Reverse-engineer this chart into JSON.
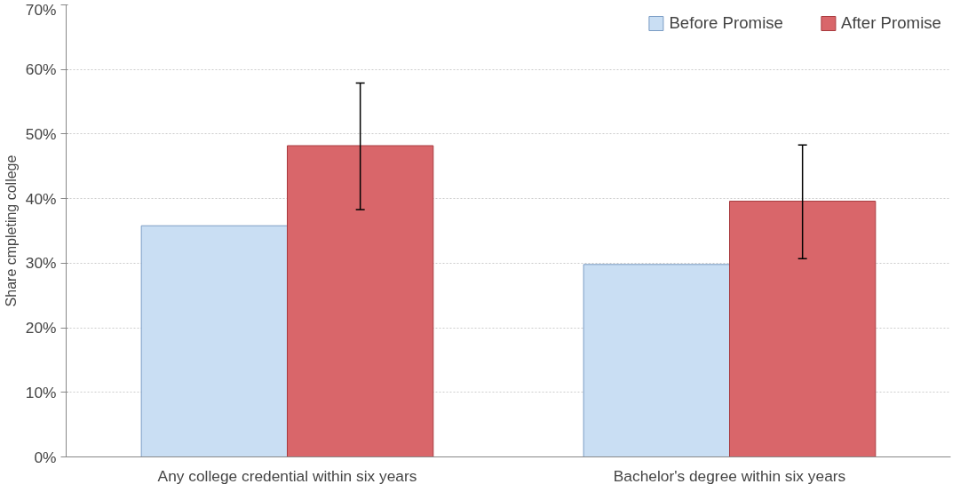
{
  "chart_data": {
    "type": "bar",
    "ylabel": "Share cmpleting college",
    "categories": [
      "Any college credential within six years",
      "Bachelor's degree within six years"
    ],
    "series": [
      {
        "name": "Before Promise",
        "color": "#c9def3",
        "values": [
          35.8,
          29.8
        ]
      },
      {
        "name": "After Promise",
        "color": "#d9666a",
        "values": [
          48.2,
          39.6
        ],
        "errors": [
          [
            38.3,
            57.9
          ],
          [
            30.7,
            48.3
          ]
        ]
      }
    ],
    "ylim": [
      0,
      70
    ],
    "yticks": [
      {
        "value": 0,
        "label": "0%"
      },
      {
        "value": 10,
        "label": "10%"
      },
      {
        "value": 20,
        "label": "20%"
      },
      {
        "value": 30,
        "label": "30%"
      },
      {
        "value": 40,
        "label": "40%"
      },
      {
        "value": 50,
        "label": "50%"
      },
      {
        "value": 60,
        "label": "60%"
      },
      {
        "value": 70,
        "label": "70%"
      }
    ],
    "grid": "y",
    "legend": "top right"
  }
}
